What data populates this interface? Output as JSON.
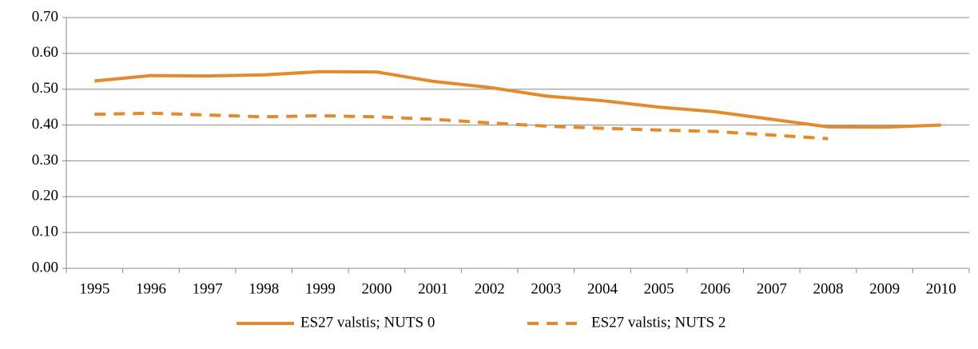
{
  "chart_data": {
    "type": "line",
    "categories": [
      "1995",
      "1996",
      "1997",
      "1998",
      "1999",
      "2000",
      "2001",
      "2002",
      "2003",
      "2004",
      "2005",
      "2006",
      "2007",
      "2008",
      "2009",
      "2010"
    ],
    "series": [
      {
        "name": "ES27 valstis; NUTS 0",
        "color": "#e38a2c",
        "dash": "solid",
        "values": [
          0.523,
          0.538,
          0.537,
          0.54,
          0.549,
          0.548,
          0.522,
          0.505,
          0.481,
          0.468,
          0.45,
          0.437,
          0.416,
          0.395,
          0.394,
          0.4
        ]
      },
      {
        "name": "ES27 valstis; NUTS 2",
        "color": "#e38a2c",
        "dash": "dashed",
        "values": [
          0.43,
          0.433,
          0.428,
          0.423,
          0.426,
          0.423,
          0.416,
          0.406,
          0.397,
          0.391,
          0.386,
          0.382,
          0.372,
          0.362,
          null,
          null
        ]
      }
    ],
    "ylim": [
      0,
      0.7
    ],
    "yticks": [
      {
        "value": 0,
        "label": "0.00"
      },
      {
        "value": 0.1,
        "label": "0.10"
      },
      {
        "value": 0.2,
        "label": "0.20"
      },
      {
        "value": 0.3,
        "label": "0.30"
      },
      {
        "value": 0.4,
        "label": "0.40"
      },
      {
        "value": 0.5,
        "label": "0.50"
      },
      {
        "value": 0.6,
        "label": "0.60"
      },
      {
        "value": 0.7,
        "label": "0.70"
      }
    ],
    "grid": true,
    "legend": "bottom"
  }
}
